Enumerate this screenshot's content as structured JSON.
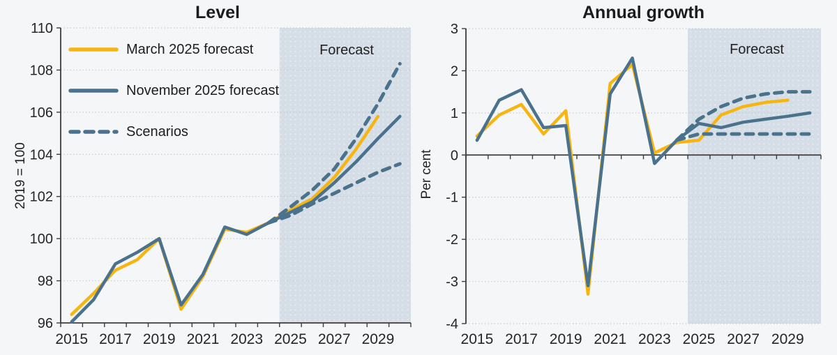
{
  "figure": {
    "background": "#f4f6f8",
    "forecast_shade_color": "#d5dee6",
    "grid_color": "#c7ccd1",
    "axis_color": "#3c3c3c",
    "text_color": "#262626",
    "accent_yellow": "#f7b512",
    "accent_blue": "#4a728d"
  },
  "legend": {
    "items": [
      {
        "label": "March 2025 forecast",
        "color": "#f7b512",
        "dash": false
      },
      {
        "label": "November 2025 forecast",
        "color": "#4a728d",
        "dash": false
      },
      {
        "label": "Scenarios",
        "color": "#4a728d",
        "dash": true
      }
    ]
  },
  "chart_data": [
    {
      "type": "line",
      "title": "Level",
      "ylabel": "2019 = 100",
      "forecast_label": "Forecast",
      "ylim": [
        96,
        110
      ],
      "ytick_step": 2,
      "baseline_value": 96,
      "grid": true,
      "forecast_start": 2025,
      "x": [
        2015,
        2016,
        2017,
        2018,
        2019,
        2020,
        2021,
        2022,
        2023,
        2024,
        2025,
        2026,
        2027,
        2028,
        2029,
        2030
      ],
      "x_tick_labels": [
        2015,
        2017,
        2019,
        2021,
        2023,
        2025,
        2027,
        2029
      ],
      "series": [
        {
          "name": "March 2025 forecast",
          "color": "#f7b512",
          "style": "solid",
          "values": [
            96.4,
            97.4,
            98.5,
            99.0,
            100.0,
            96.65,
            98.2,
            100.45,
            100.3,
            100.75,
            101.35,
            101.9,
            102.9,
            104.25,
            105.8,
            null
          ]
        },
        {
          "name": "November 2025 forecast",
          "color": "#4a728d",
          "style": "solid",
          "values": [
            96.05,
            97.1,
            98.8,
            99.35,
            100.0,
            96.85,
            98.3,
            100.55,
            100.2,
            100.75,
            101.25,
            101.75,
            102.65,
            103.65,
            104.75,
            105.8
          ]
        },
        {
          "name": "Scenario high",
          "color": "#4a728d",
          "style": "dashed",
          "values": [
            null,
            null,
            null,
            null,
            null,
            null,
            null,
            null,
            null,
            100.75,
            101.5,
            102.3,
            103.3,
            104.75,
            106.4,
            108.3
          ]
        },
        {
          "name": "Scenario low",
          "color": "#4a728d",
          "style": "dashed",
          "values": [
            null,
            null,
            null,
            null,
            null,
            null,
            null,
            null,
            null,
            100.75,
            101.1,
            101.65,
            102.15,
            102.65,
            103.15,
            103.55
          ]
        }
      ]
    },
    {
      "type": "line",
      "title": "Annual growth",
      "ylabel": "Per cent",
      "forecast_label": "Forecast",
      "ylim": [
        -4,
        3
      ],
      "ytick_step": 1,
      "baseline_value": 0,
      "grid": true,
      "forecast_start": 2025,
      "x": [
        2015,
        2016,
        2017,
        2018,
        2019,
        2020,
        2021,
        2022,
        2023,
        2024,
        2025,
        2026,
        2027,
        2028,
        2029,
        2030
      ],
      "x_tick_labels": [
        2015,
        2017,
        2019,
        2021,
        2023,
        2025,
        2027,
        2029
      ],
      "series": [
        {
          "name": "March 2025 forecast",
          "color": "#f7b512",
          "style": "solid",
          "values": [
            0.45,
            0.95,
            1.2,
            0.5,
            1.05,
            -3.3,
            1.7,
            2.15,
            0.05,
            0.3,
            0.35,
            0.95,
            1.15,
            1.25,
            1.3,
            null
          ]
        },
        {
          "name": "November 2025 forecast",
          "color": "#4a728d",
          "style": "solid",
          "values": [
            0.35,
            1.3,
            1.55,
            0.65,
            0.7,
            -3.1,
            1.45,
            2.3,
            -0.2,
            0.35,
            0.75,
            0.65,
            0.78,
            0.85,
            0.92,
            1.0
          ]
        },
        {
          "name": "Scenario high",
          "color": "#4a728d",
          "style": "dashed",
          "values": [
            null,
            null,
            null,
            null,
            null,
            null,
            null,
            null,
            null,
            0.35,
            0.85,
            1.15,
            1.35,
            1.45,
            1.5,
            1.5
          ]
        },
        {
          "name": "Scenario low",
          "color": "#4a728d",
          "style": "dashed",
          "values": [
            null,
            null,
            null,
            null,
            null,
            null,
            null,
            null,
            null,
            0.35,
            0.5,
            0.5,
            0.5,
            0.5,
            0.5,
            0.5
          ]
        }
      ]
    }
  ]
}
